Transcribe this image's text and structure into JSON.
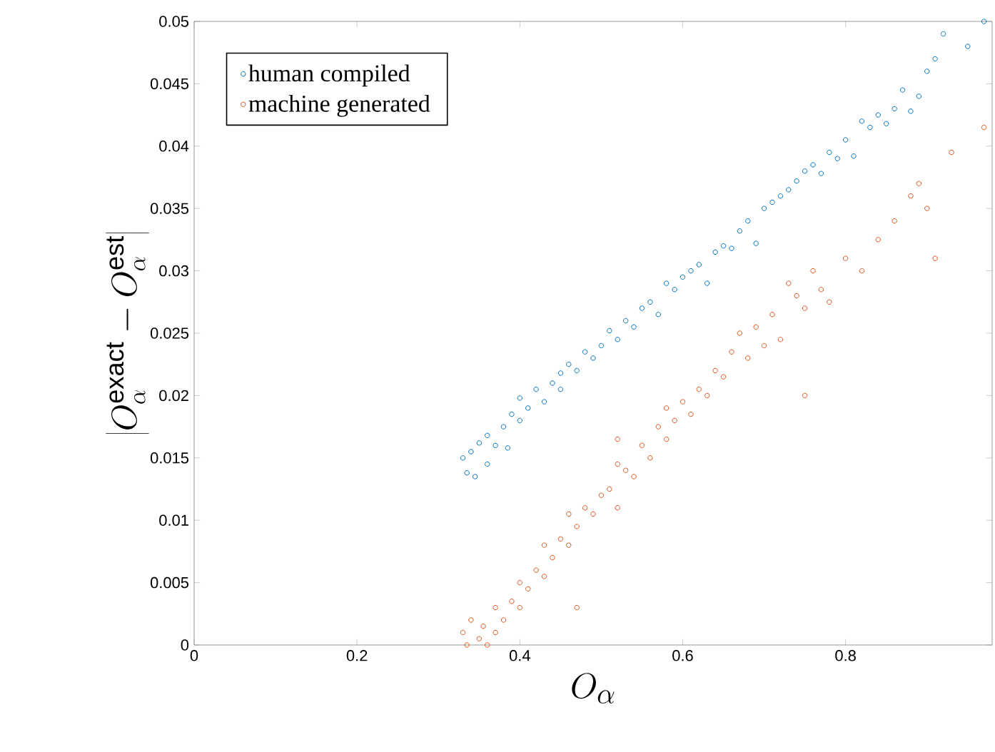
{
  "chart_data": {
    "type": "scatter",
    "xlabel": "O_\\alpha",
    "ylabel": "\\left|O_\\alpha^{\\mathrm{exact}} - O_\\alpha^{\\mathrm{est}}\\right|",
    "xlim": [
      0,
      0.98
    ],
    "xticks": [
      0,
      0.2,
      0.4,
      0.6,
      0.8
    ],
    "ylim": [
      0,
      0.05
    ],
    "yticks": [
      0,
      0.005,
      0.01,
      0.015,
      0.02,
      0.025,
      0.03,
      0.035,
      0.04,
      0.045,
      0.05
    ],
    "grid": false,
    "legend": "top left",
    "marker": "circle",
    "series": [
      {
        "name": "human compiled",
        "color": "#0072bd",
        "x": [
          0.33,
          0.335,
          0.34,
          0.345,
          0.35,
          0.36,
          0.36,
          0.37,
          0.38,
          0.385,
          0.39,
          0.4,
          0.4,
          0.41,
          0.42,
          0.43,
          0.44,
          0.45,
          0.45,
          0.46,
          0.47,
          0.48,
          0.49,
          0.5,
          0.51,
          0.52,
          0.53,
          0.54,
          0.55,
          0.56,
          0.57,
          0.58,
          0.59,
          0.6,
          0.61,
          0.62,
          0.63,
          0.64,
          0.65,
          0.66,
          0.67,
          0.68,
          0.69,
          0.7,
          0.71,
          0.72,
          0.73,
          0.74,
          0.75,
          0.76,
          0.77,
          0.78,
          0.79,
          0.8,
          0.81,
          0.82,
          0.83,
          0.84,
          0.85,
          0.86,
          0.87,
          0.88,
          0.89,
          0.9,
          0.91,
          0.92,
          0.95,
          0.97
        ],
        "values": [
          0.015,
          0.0138,
          0.0155,
          0.0135,
          0.0162,
          0.0145,
          0.0168,
          0.016,
          0.0175,
          0.0158,
          0.0185,
          0.018,
          0.0198,
          0.019,
          0.0205,
          0.0195,
          0.021,
          0.0218,
          0.0205,
          0.0225,
          0.022,
          0.0235,
          0.023,
          0.024,
          0.0252,
          0.0245,
          0.026,
          0.0255,
          0.027,
          0.0275,
          0.0265,
          0.029,
          0.0285,
          0.0295,
          0.03,
          0.0305,
          0.029,
          0.0315,
          0.032,
          0.0318,
          0.0332,
          0.034,
          0.0322,
          0.035,
          0.0355,
          0.036,
          0.0365,
          0.0372,
          0.038,
          0.0385,
          0.0378,
          0.0395,
          0.039,
          0.0405,
          0.0392,
          0.042,
          0.0415,
          0.0425,
          0.0418,
          0.043,
          0.0445,
          0.0428,
          0.044,
          0.046,
          0.047,
          0.049,
          0.048,
          0.05
        ]
      },
      {
        "name": "machine generated",
        "color": "#d95319",
        "x": [
          0.33,
          0.335,
          0.34,
          0.35,
          0.355,
          0.36,
          0.37,
          0.37,
          0.38,
          0.39,
          0.4,
          0.4,
          0.41,
          0.42,
          0.43,
          0.43,
          0.44,
          0.45,
          0.46,
          0.46,
          0.47,
          0.48,
          0.49,
          0.5,
          0.51,
          0.52,
          0.52,
          0.53,
          0.54,
          0.55,
          0.56,
          0.57,
          0.58,
          0.58,
          0.59,
          0.6,
          0.61,
          0.62,
          0.63,
          0.64,
          0.65,
          0.66,
          0.67,
          0.68,
          0.69,
          0.7,
          0.71,
          0.72,
          0.73,
          0.74,
          0.75,
          0.76,
          0.77,
          0.78,
          0.8,
          0.82,
          0.84,
          0.86,
          0.88,
          0.89,
          0.9,
          0.91,
          0.93,
          0.97,
          0.47,
          0.52,
          0.75
        ],
        "values": [
          0.001,
          0.0,
          0.002,
          0.0005,
          0.0015,
          0.0,
          0.001,
          0.003,
          0.002,
          0.0035,
          0.003,
          0.005,
          0.0045,
          0.006,
          0.0055,
          0.008,
          0.007,
          0.0085,
          0.008,
          0.0105,
          0.0095,
          0.011,
          0.0105,
          0.012,
          0.0125,
          0.011,
          0.0145,
          0.014,
          0.0135,
          0.016,
          0.015,
          0.0175,
          0.0165,
          0.019,
          0.018,
          0.0195,
          0.0185,
          0.0205,
          0.02,
          0.022,
          0.0215,
          0.0235,
          0.025,
          0.023,
          0.0255,
          0.024,
          0.0265,
          0.0245,
          0.029,
          0.028,
          0.027,
          0.03,
          0.0285,
          0.0275,
          0.031,
          0.03,
          0.0325,
          0.034,
          0.036,
          0.037,
          0.035,
          0.031,
          0.0395,
          0.0415,
          0.003,
          0.0165,
          0.02
        ]
      }
    ]
  }
}
